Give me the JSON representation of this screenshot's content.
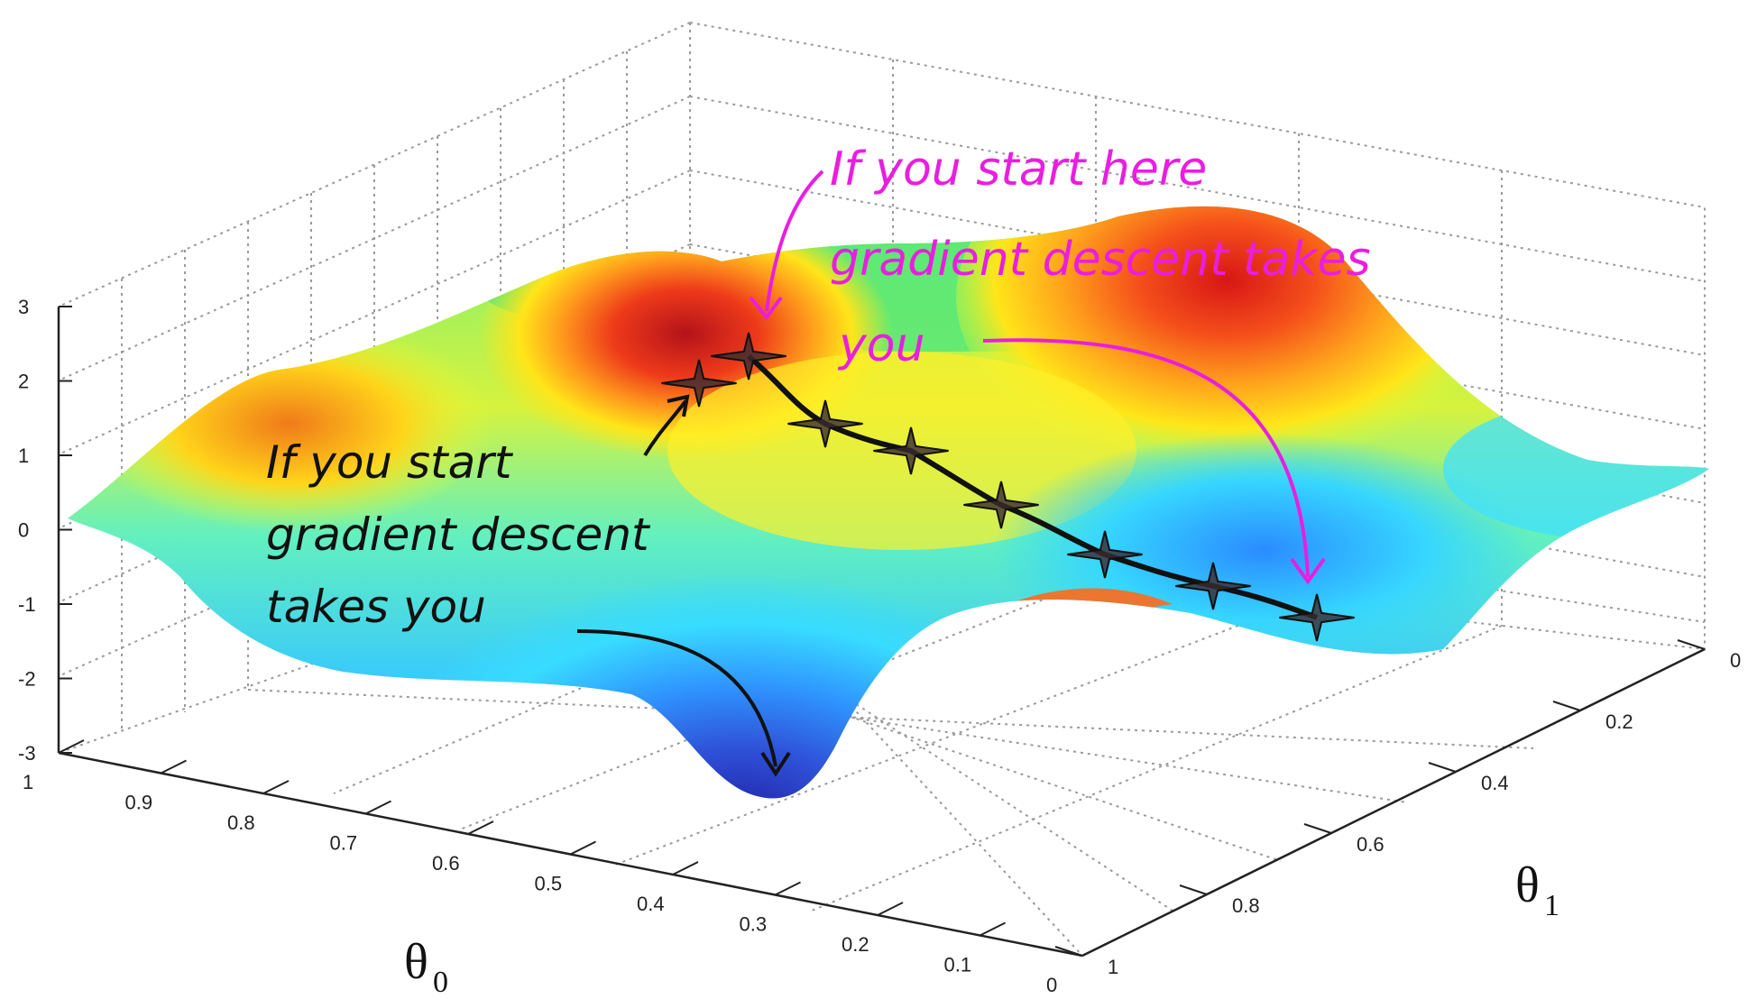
{
  "chart_data": {
    "type": "surface",
    "title": "",
    "xlabel": "θ0",
    "ylabel": "θ1",
    "zlabel": "",
    "x_axis": {
      "label_main": "θ",
      "label_sub": "0",
      "range": [
        0,
        1
      ],
      "ticks": [
        "1",
        "0.9",
        "0.8",
        "0.7",
        "0.6",
        "0.5",
        "0.4",
        "0.3",
        "0.2",
        "0.1",
        "0"
      ]
    },
    "y_axis": {
      "label_main": "θ",
      "label_sub": "1",
      "range": [
        0,
        1
      ],
      "ticks": [
        "0",
        "0.2",
        "0.4",
        "0.6",
        "0.8",
        "1"
      ]
    },
    "z_axis": {
      "range": [
        -3,
        3
      ],
      "ticks": [
        "3",
        "2",
        "1",
        "0",
        "-1",
        "-2",
        "-3"
      ]
    },
    "grid": true,
    "colormap": [
      "#1a1aa8",
      "#2f7bff",
      "#28d8ff",
      "#b6ff42",
      "#ffe51a",
      "#ff8a1a",
      "#d81616"
    ],
    "path_black": [
      {
        "x": 0.42,
        "y": 0.3,
        "z": 2.0
      }
    ],
    "path_pink": [
      {
        "x": 0.36,
        "y": 0.3,
        "z": 2.35
      },
      {
        "x": 0.32,
        "y": 0.35,
        "z": 1.5
      },
      {
        "x": 0.27,
        "y": 0.4,
        "z": 1.1
      },
      {
        "x": 0.2,
        "y": 0.5,
        "z": 0.4
      },
      {
        "x": 0.14,
        "y": 0.58,
        "z": -0.3
      },
      {
        "x": 0.08,
        "y": 0.66,
        "z": -0.7
      },
      {
        "x": 0.02,
        "y": 0.75,
        "z": -1.1
      }
    ],
    "annotations": {
      "black_lines": [
        "If you start",
        "gradient descent",
        "takes you"
      ],
      "pink_lines": [
        "If you start here",
        "gradient descent takes",
        "you"
      ]
    }
  }
}
